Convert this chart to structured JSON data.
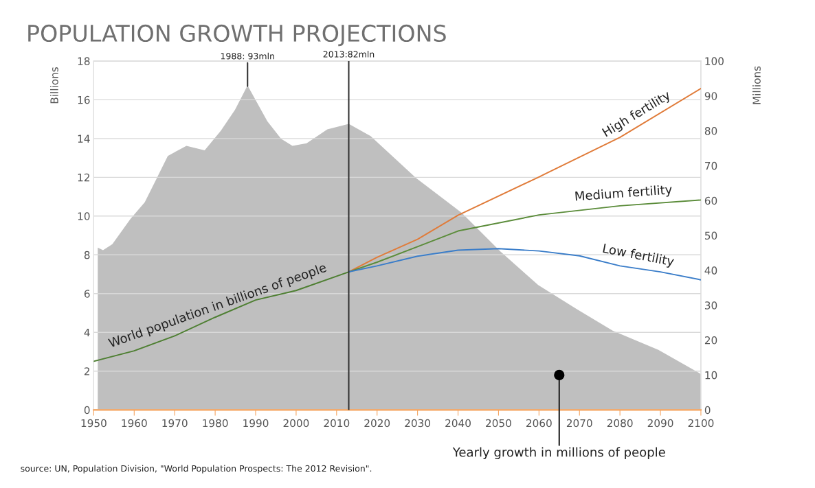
{
  "chart_data": {
    "type": "line",
    "title": "POPULATION GROWTH PROJECTIONS",
    "ylabel": "Billions",
    "y2label": "Millions",
    "xlim": [
      1950,
      2100
    ],
    "xticks": [
      1950,
      1960,
      1970,
      1980,
      1990,
      2000,
      2010,
      2020,
      2030,
      2040,
      2050,
      2060,
      2070,
      2080,
      2090,
      2100
    ],
    "ylim": [
      0,
      18
    ],
    "yticks": [
      0,
      2,
      4,
      6,
      8,
      10,
      12,
      14,
      16,
      18
    ],
    "y2lim": [
      0,
      100
    ],
    "y2ticks": [
      0,
      10,
      20,
      30,
      40,
      50,
      60,
      70,
      80,
      90,
      100
    ],
    "grid": "y",
    "series": [
      {
        "type": "area",
        "axis": "y2",
        "color": "#bfbfbf",
        "x": [
          1951,
          1952.3,
          1954.6,
          1959.1,
          1962.6,
          1965.4,
          1968.3,
          1972.9,
          1977.4,
          1981.4,
          1984.9,
          1988,
          1992.9,
          1996.3,
          1999.1,
          2002.6,
          2007.7,
          2013,
          2018.4,
          2029.6,
          2040.9,
          2050.4,
          2059.8,
          2069.3,
          2078.2,
          2089.5,
          2100
        ],
        "values": [
          46.5,
          45.8,
          47.5,
          54.8,
          59.5,
          66,
          72.8,
          75.7,
          74.4,
          80,
          86,
          93,
          82.7,
          77.7,
          75.7,
          76.4,
          80.4,
          82,
          78.5,
          66.5,
          56.5,
          45.5,
          35.8,
          28.9,
          22.7,
          17.2,
          10.3
        ]
      },
      {
        "name": "World population in billions of people",
        "color": "#4e7f32",
        "x": [
          1950,
          1960,
          1970,
          1980,
          1990,
          2000,
          2013
        ],
        "values": [
          2.51,
          3.05,
          3.82,
          4.78,
          5.67,
          6.16,
          7.12
        ]
      },
      {
        "name": "High fertility",
        "color": "#e07b39",
        "x": [
          2013,
          2020,
          2030,
          2040,
          2060,
          2080,
          2100
        ],
        "values": [
          7.12,
          7.87,
          8.8,
          10.04,
          12.02,
          14.06,
          16.58
        ]
      },
      {
        "name": "Medium fertility",
        "color": "#5b8c3a",
        "x": [
          2013,
          2020,
          2030,
          2040,
          2060,
          2080,
          2100
        ],
        "values": [
          7.12,
          7.62,
          8.42,
          9.23,
          10.06,
          10.53,
          10.83
        ]
      },
      {
        "name": "Low fertility",
        "color": "#3a7dc9",
        "x": [
          2013,
          2020,
          2030,
          2040,
          2050,
          2060,
          2070,
          2080,
          2090,
          2100
        ],
        "values": [
          7.12,
          7.43,
          7.93,
          8.24,
          8.32,
          8.2,
          7.95,
          7.43,
          7.12,
          6.71
        ]
      }
    ],
    "ref_lines": [
      {
        "axis": "x",
        "value": 2013,
        "label": "2013:82mln",
        "color": "#333333"
      }
    ],
    "annotations": [
      {
        "text": "1988: 93mln",
        "x": 1988,
        "y": 16.7
      },
      {
        "text": "Yearly growth in millions of people",
        "x": 2065,
        "y": 1.8
      },
      "source: UN, Population Division, \"World Population Prospects: The 2012 Revision\"."
    ]
  }
}
